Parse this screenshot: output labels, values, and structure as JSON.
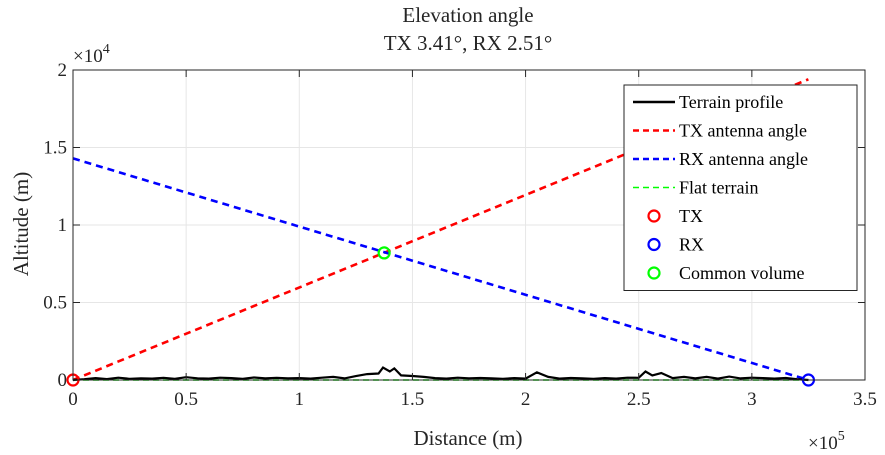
{
  "chart_data": {
    "type": "line",
    "title_lines": [
      "Elevation angle",
      "TX 3.41°, RX 2.51°"
    ],
    "xlabel": "Distance (m)",
    "ylabel": "Altitude (m)",
    "x_exponent": {
      "base": "×10",
      "power": "5"
    },
    "y_exponent": {
      "base": "×10",
      "power": "4"
    },
    "xlim": [
      0,
      350000
    ],
    "ylim": [
      0,
      20000
    ],
    "x_ticks": [
      0,
      50000,
      100000,
      150000,
      200000,
      250000,
      300000,
      350000
    ],
    "x_tick_labels": [
      "0",
      "0.5",
      "1",
      "1.5",
      "2",
      "2.5",
      "3",
      "3.5"
    ],
    "y_ticks": [
      0,
      5000,
      10000,
      15000,
      20000
    ],
    "y_tick_labels": [
      "0",
      "0.5",
      "1",
      "1.5",
      "2"
    ],
    "grid": true,
    "legend_position": "top-right",
    "series": [
      {
        "name": "Terrain profile",
        "color": "#000000",
        "style": "solid",
        "x": [
          0,
          5000,
          10000,
          15000,
          20000,
          25000,
          30000,
          35000,
          40000,
          45000,
          50000,
          55000,
          60000,
          65000,
          70000,
          75000,
          80000,
          85000,
          90000,
          95000,
          100000,
          105000,
          110000,
          115000,
          120000,
          125000,
          130000,
          135000,
          137000,
          140000,
          142000,
          145000,
          150000,
          155000,
          160000,
          165000,
          170000,
          175000,
          180000,
          185000,
          190000,
          195000,
          200000,
          205000,
          210000,
          215000,
          220000,
          225000,
          230000,
          235000,
          240000,
          245000,
          250000,
          253000,
          256000,
          260000,
          265000,
          270000,
          275000,
          280000,
          285000,
          290000,
          295000,
          300000,
          305000,
          310000,
          315000,
          320000,
          325000
        ],
        "y": [
          0,
          50,
          120,
          60,
          150,
          80,
          100,
          90,
          140,
          70,
          180,
          110,
          90,
          150,
          120,
          80,
          160,
          100,
          140,
          110,
          120,
          90,
          150,
          200,
          100,
          250,
          380,
          420,
          800,
          550,
          750,
          300,
          260,
          200,
          120,
          90,
          150,
          110,
          130,
          100,
          80,
          120,
          90,
          500,
          200,
          90,
          130,
          100,
          80,
          120,
          90,
          150,
          140,
          550,
          300,
          450,
          120,
          200,
          100,
          200,
          90,
          220,
          100,
          150,
          120,
          90,
          130,
          50,
          0
        ]
      },
      {
        "name": "TX antenna angle",
        "color": "#ff0000",
        "style": "dashed",
        "x": [
          0,
          325000
        ],
        "y": [
          0,
          19400
        ]
      },
      {
        "name": "RX antenna angle",
        "color": "#0000ff",
        "style": "dashed",
        "x": [
          0,
          325000
        ],
        "y": [
          14300,
          0
        ]
      },
      {
        "name": "Flat terrain",
        "color": "#00ff00",
        "style": "dashed",
        "x": [
          0,
          325000
        ],
        "y": [
          0,
          0
        ]
      }
    ],
    "markers": [
      {
        "name": "TX",
        "color": "#ff0000",
        "x": 0,
        "y": 0
      },
      {
        "name": "RX",
        "color": "#0000ff",
        "x": 325000,
        "y": 0
      },
      {
        "name": "Common volume",
        "color": "#00ff00",
        "x": 137500,
        "y": 8200
      }
    ]
  }
}
